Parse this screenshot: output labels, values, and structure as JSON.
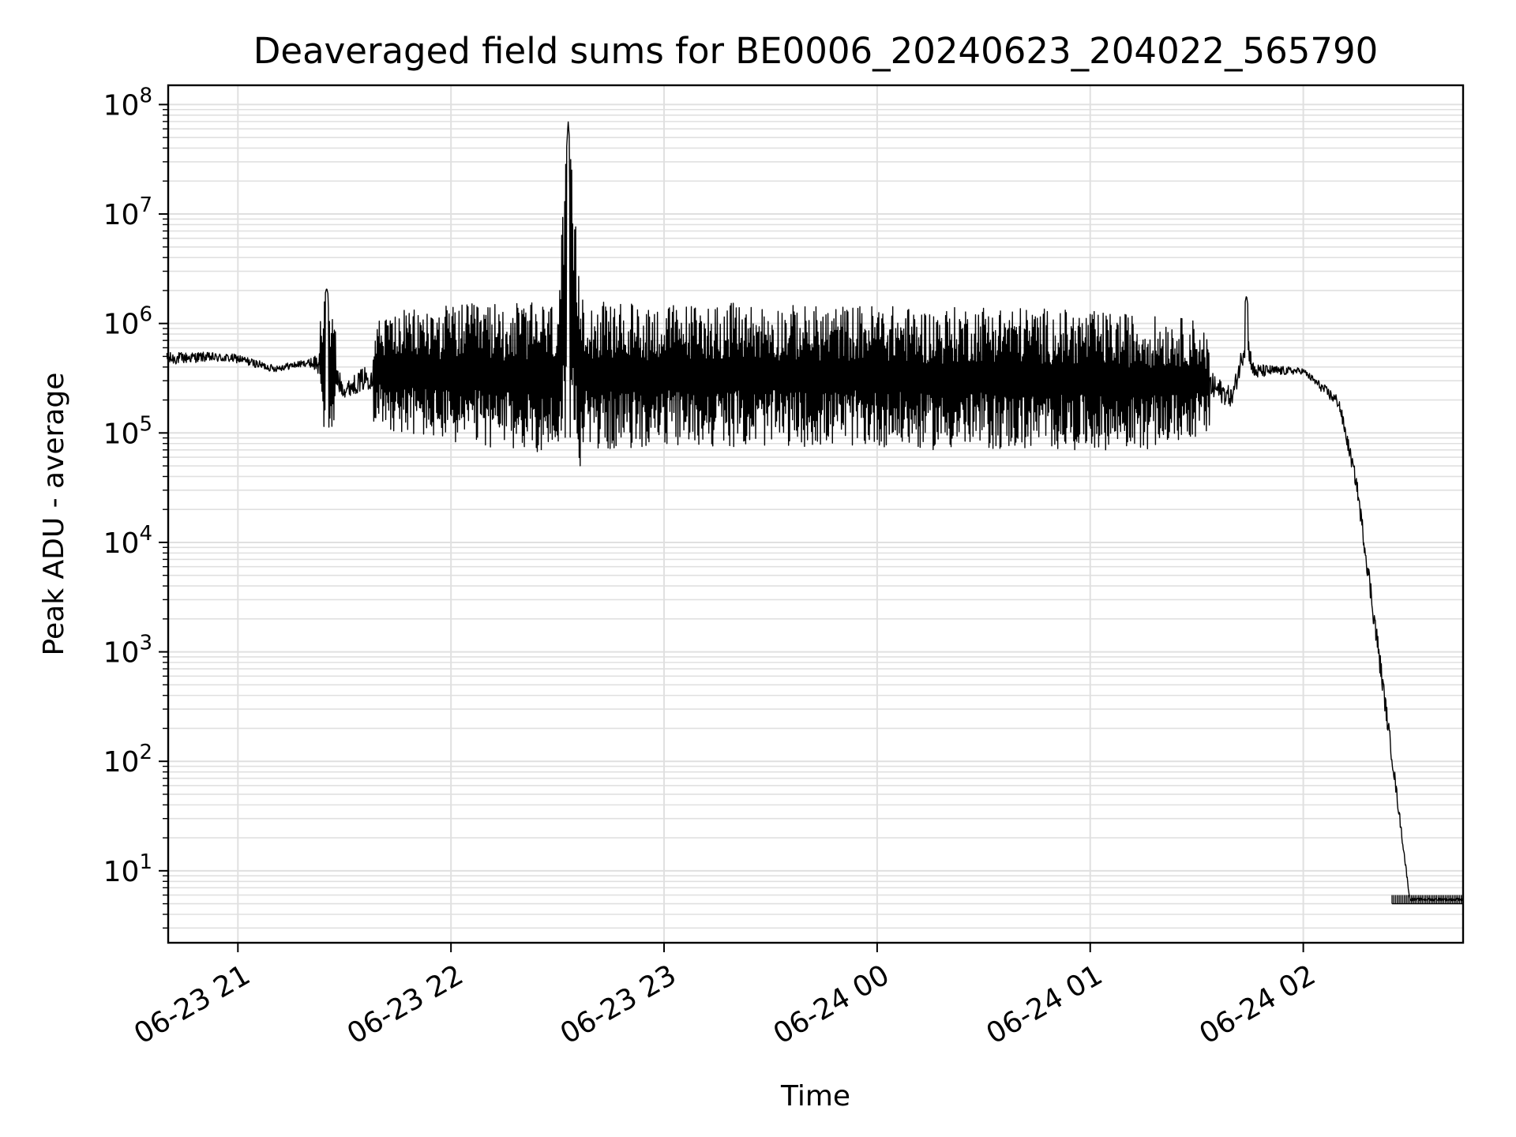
{
  "chart_data": {
    "type": "line",
    "title": "Deaveraged field sums for BE0006_20240623_204022_565790",
    "xlabel": "Time",
    "ylabel": "Peak ADU - average",
    "yscale": "log",
    "ylim": [
      2.2,
      150000000
    ],
    "xlim": [
      "2024-06-23 20:40:22",
      "2024-06-24 02:45:00"
    ],
    "grid": true,
    "line_color": "#000000",
    "grid_color": "#e0e0e0",
    "x_tick_labels": [
      "06-23 21",
      "06-23 22",
      "06-23 23",
      "06-24 00",
      "06-24 01",
      "06-24 02"
    ],
    "x_ticks": [
      "2024-06-23 21:00",
      "2024-06-23 22:00",
      "2024-06-23 23:00",
      "2024-06-24 00:00",
      "2024-06-24 01:00",
      "2024-06-24 02:00"
    ],
    "y_ticks": [
      {
        "base": "10",
        "exp": "1"
      },
      {
        "base": "10",
        "exp": "2"
      },
      {
        "base": "10",
        "exp": "3"
      },
      {
        "base": "10",
        "exp": "4"
      },
      {
        "base": "10",
        "exp": "5"
      },
      {
        "base": "10",
        "exp": "6"
      },
      {
        "base": "10",
        "exp": "7"
      },
      {
        "base": "10",
        "exp": "8"
      }
    ],
    "series": [
      {
        "name": "",
        "x": [
          "2024-06-23 20:40",
          "2024-06-23 20:50",
          "2024-06-23 21:00",
          "2024-06-23 21:10",
          "2024-06-23 21:20",
          "2024-06-23 21:25",
          "2024-06-23 21:30",
          "2024-06-23 21:40",
          "2024-06-23 21:45",
          "2024-06-23 22:00",
          "2024-06-23 22:15",
          "2024-06-23 22:30",
          "2024-06-23 22:33",
          "2024-06-23 22:36",
          "2024-06-23 22:40",
          "2024-06-23 22:45",
          "2024-06-23 23:00",
          "2024-06-23 23:15",
          "2024-06-23 23:30",
          "2024-06-23 23:45",
          "2024-06-24 00:00",
          "2024-06-24 00:15",
          "2024-06-24 00:30",
          "2024-06-24 00:45",
          "2024-06-24 01:00",
          "2024-06-24 01:15",
          "2024-06-24 01:30",
          "2024-06-24 01:40",
          "2024-06-24 01:44",
          "2024-06-24 01:46",
          "2024-06-24 01:50",
          "2024-06-24 02:00",
          "2024-06-24 02:10",
          "2024-06-24 02:15",
          "2024-06-24 02:20",
          "2024-06-24 02:25",
          "2024-06-24 02:30",
          "2024-06-24 02:35",
          "2024-06-24 02:40",
          "2024-06-24 02:45"
        ],
        "y_upper": [
          750000,
          700000,
          650000,
          500000,
          550000,
          2100000,
          400000,
          1200000,
          1300000,
          1500000,
          1550000,
          1550000,
          70000000,
          3200000,
          1600000,
          1550000,
          1500000,
          1550000,
          1500000,
          1450000,
          1500000,
          1350000,
          1500000,
          1400000,
          1300000,
          1200000,
          1100000,
          400000,
          1800000,
          650000,
          550000,
          450000,
          300000,
          60000,
          5000,
          200,
          6,
          6,
          6,
          6
        ],
        "y_lower": [
          300000,
          350000,
          350000,
          300000,
          350000,
          90000,
          150000,
          120000,
          100000,
          80000,
          70000,
          65000,
          80000,
          48000,
          70000,
          70000,
          75000,
          75000,
          75000,
          75000,
          75000,
          70000,
          70000,
          70000,
          70000,
          70000,
          90000,
          110000,
          300000,
          200000,
          250000,
          300000,
          120000,
          20000,
          800,
          60,
          5,
          5,
          5,
          5
        ]
      }
    ]
  }
}
